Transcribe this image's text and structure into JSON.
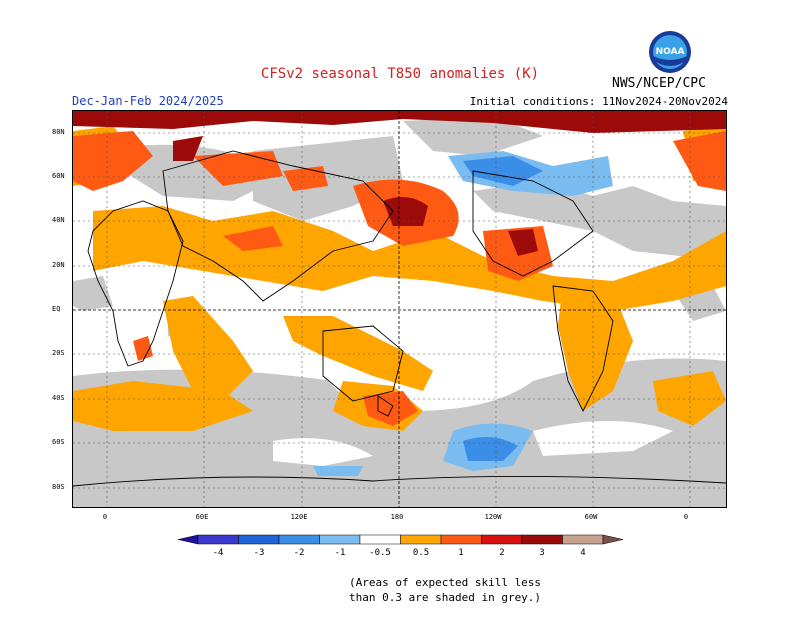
{
  "header": {
    "title": "CFSv2 seasonal T850 anomalies (K)",
    "period": "Dec-Jan-Feb 2024/2025",
    "initial_conditions": "Initial conditions: 11Nov2024-20Nov2024",
    "agency": "NWS/NCEP/CPC",
    "logo_text": "NOAA"
  },
  "map": {
    "lat_labels": [
      "80N",
      "60N",
      "40N",
      "20N",
      "EQ",
      "20S",
      "40S",
      "60S",
      "80S"
    ],
    "lon_labels": [
      "0",
      "60E",
      "120E",
      "180",
      "120W",
      "60W",
      "0"
    ]
  },
  "legend": {
    "ticks": [
      "-4",
      "-3",
      "-2",
      "-1",
      "-0.5",
      "0.5",
      "1",
      "2",
      "3",
      "4"
    ],
    "colors": [
      "#2010a0",
      "#3b38d0",
      "#1f64d8",
      "#3a8ee8",
      "#7bbcf0",
      "#ffffff",
      "#ffa500",
      "#ff5a14",
      "#d81010",
      "#9c0a0a",
      "#c8a090",
      "#7a5048"
    ],
    "skill_color": "#c8c8c8"
  },
  "note": {
    "line1": "(Areas of expected skill less",
    "line2": "than 0.3 are shaded in grey.)"
  }
}
